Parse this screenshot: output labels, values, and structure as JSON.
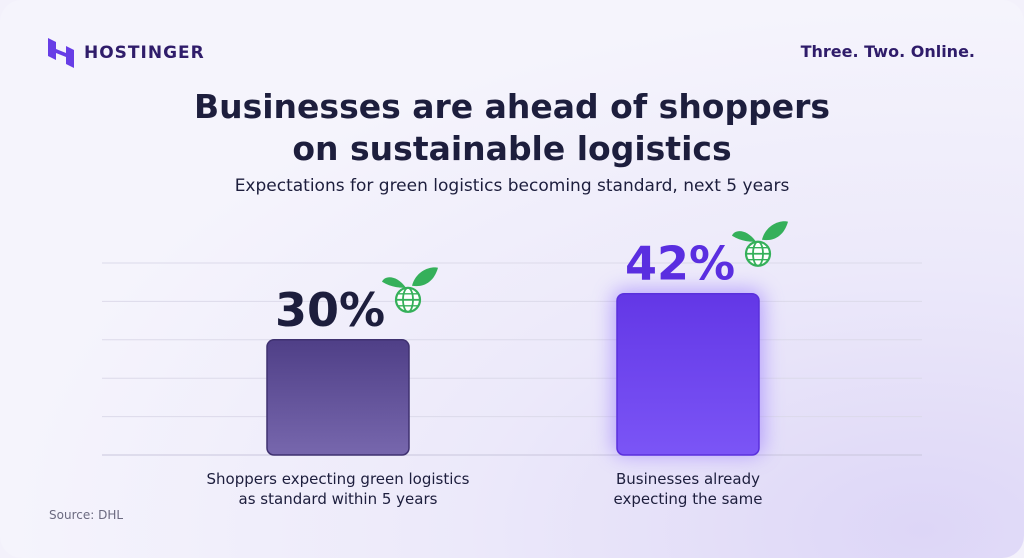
{
  "brand": {
    "name": "HOSTINGER",
    "tagline": "Three. Two. Online.",
    "logo_icon": "hostinger-h-icon"
  },
  "header": {
    "title_line1": "Businesses are ahead of shoppers",
    "title_line2": "on sustainable logistics",
    "subtitle": "Expectations for green logistics becoming standard, next 5 years"
  },
  "chart_data": {
    "type": "bar",
    "title": "Businesses are ahead of shoppers on sustainable logistics",
    "subtitle": "Expectations for green logistics becoming standard, next 5 years",
    "categories": [
      "Shoppers expecting green logistics as standard within 5 years",
      "Businesses already expecting the same"
    ],
    "category_lines": [
      [
        "Shoppers expecting green logistics",
        "as standard within 5 years"
      ],
      [
        "Businesses already",
        "expecting the same"
      ]
    ],
    "values": [
      30,
      42
    ],
    "value_labels": [
      "30%",
      "42%"
    ],
    "ylim": [
      0,
      50
    ],
    "grid": true,
    "colors": [
      "#5b4a96",
      "#6a3df0"
    ],
    "icon": "globe-leaf-icon"
  },
  "footer": {
    "source": "Source: DHL"
  }
}
